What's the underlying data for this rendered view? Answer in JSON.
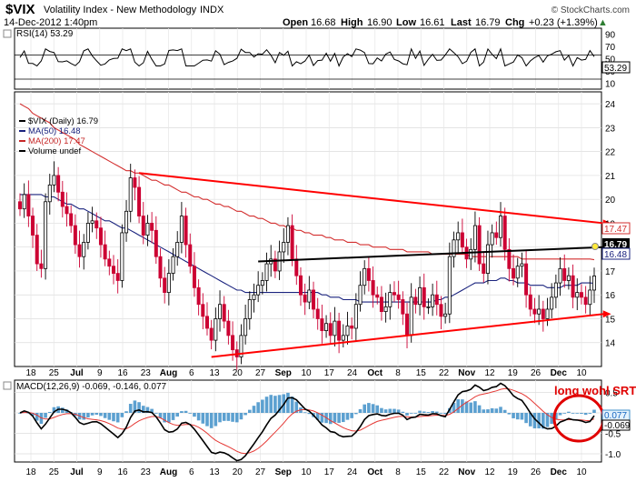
{
  "header": {
    "symbol": "$VIX",
    "name": "Volatility Index - New Methodology",
    "exchange": "INDX",
    "date": "14-Dec-2012 1:40pm",
    "open_label": "Open",
    "open": "16.68",
    "high_label": "High",
    "high": "16.90",
    "low_label": "Low",
    "low": "16.61",
    "last_label": "Last",
    "last": "16.79",
    "chg_label": "Chg",
    "chg": "+0.23 (+1.39%)",
    "up_glyph": "▲",
    "copyright": "© StockCharts.com"
  },
  "rsi_panel": {
    "label": "RSI(14) 53.29",
    "last_label": "53.29",
    "y_ticks": [
      "90",
      "70",
      "50",
      "30",
      "10"
    ]
  },
  "price_panel": {
    "legend": [
      {
        "text": "$VIX (Daily) 16.79",
        "color": "#000000"
      },
      {
        "text": "MA(50) 16.48",
        "color": "#1a237e"
      },
      {
        "text": "MA(200) 17.47",
        "color": "#c62828"
      },
      {
        "text": "Volume undef",
        "color": "#000000"
      }
    ],
    "y_ticks": [
      "24",
      "23",
      "22",
      "21",
      "20",
      "19",
      "18",
      "17",
      "16",
      "15",
      "14"
    ],
    "price_tag": "16.79",
    "ma200_tag": "17.47",
    "ma50_tag": "16.48"
  },
  "macd_panel": {
    "label": "MACD(12,26,9) -0.069, -0.146, 0.077",
    "y_ticks": [
      "0.5",
      "0.0",
      "-0.5",
      "-1.0"
    ],
    "hist_tag": "0.077",
    "macd_tag": "-0.069",
    "annotation": "long wohl SRT"
  },
  "x_axis": {
    "labels": [
      "18",
      "25",
      "Jul",
      "9",
      "16",
      "23",
      "Aug",
      "6",
      "13",
      "20",
      "27",
      "Sep",
      "10",
      "17",
      "24",
      "Oct",
      "8",
      "15",
      "22",
      "Nov",
      "12",
      "19",
      "26",
      "Dec",
      "10"
    ]
  },
  "colors": {
    "up": "#000000",
    "down": "#cc0033",
    "ma50": "#1a237e",
    "ma200": "#d32f2f",
    "trend_red": "#ff0000",
    "trend_black": "#000000",
    "histogram": "#3f8fc8",
    "signal": "#e53935"
  },
  "chart_data": {
    "type": "candlestick",
    "title": "$VIX Volatility Index - New Methodology INDX (Daily)",
    "ylim": [
      13,
      24.5
    ],
    "x_labels": [
      "18",
      "25",
      "Jul",
      "9",
      "16",
      "23",
      "Aug",
      "6",
      "13",
      "20",
      "27",
      "Sep",
      "10",
      "17",
      "24",
      "Oct",
      "8",
      "15",
      "22",
      "Nov",
      "12",
      "19",
      "26",
      "Dec",
      "10"
    ],
    "close": [
      19.6,
      20.2,
      19.3,
      18.5,
      17.3,
      17.1,
      19.9,
      20.6,
      21.0,
      20.3,
      19.7,
      19.4,
      18.9,
      18.1,
      17.6,
      18.2,
      19.0,
      19.1,
      18.8,
      18.1,
      17.5,
      17.2,
      16.9,
      16.6,
      18.6,
      19.5,
      20.9,
      20.5,
      19.3,
      18.5,
      19.0,
      18.7,
      17.6,
      16.7,
      16.1,
      16.9,
      17.6,
      18.2,
      19.3,
      18.1,
      17.2,
      16.3,
      15.6,
      15.1,
      14.6,
      14.1,
      15.0,
      15.6,
      14.9,
      14.3,
      13.7,
      13.4,
      14.3,
      15.0,
      15.8,
      16.0,
      16.4,
      16.6,
      17.3,
      17.5,
      17.0,
      17.8,
      18.2,
      18.9,
      17.5,
      16.8,
      16.0,
      15.7,
      16.2,
      15.4,
      15.0,
      14.5,
      14.8,
      14.3,
      14.9,
      14.1,
      14.3,
      14.7,
      14.6,
      15.6,
      16.4,
      17.1,
      16.6,
      16.0,
      15.9,
      15.3,
      15.5,
      16.1,
      16.0,
      15.8,
      15.2,
      14.3,
      15.9,
      15.6,
      16.3,
      15.5,
      15.5,
      16.0,
      15.6,
      15.1,
      15.2,
      17.6,
      18.3,
      18.6,
      18.0,
      17.5,
      17.9,
      18.9,
      17.3,
      16.9,
      18.1,
      18.6,
      18.4,
      19.3,
      17.9,
      17.1,
      16.7,
      17.2,
      17.3,
      16.0,
      15.4,
      15.2,
      15.4,
      15.0,
      15.4,
      15.9,
      16.5,
      17.1,
      16.6,
      16.8,
      15.9,
      16.1,
      15.9,
      15.6,
      16.2,
      16.79
    ],
    "ma50": [
      20.2,
      20.2,
      20.2,
      20.2,
      20.2,
      20.2,
      20.1,
      20.1,
      20.1,
      20.0,
      19.9,
      19.8,
      19.8,
      19.7,
      19.6,
      19.6,
      19.5,
      19.4,
      19.3,
      19.2,
      19.1,
      19.1,
      19.0,
      18.9,
      18.8,
      18.8,
      18.7,
      18.6,
      18.5,
      18.4,
      18.3,
      18.2,
      18.1,
      18.0,
      17.9,
      17.8,
      17.7,
      17.6,
      17.5,
      17.4,
      17.3,
      17.2,
      17.1,
      17.0,
      16.9,
      16.8,
      16.7,
      16.6,
      16.5,
      16.4,
      16.3,
      16.2,
      16.2,
      16.1,
      16.1,
      16.1,
      16.1,
      16.1,
      16.1,
      16.1,
      16.1,
      16.1,
      16.1,
      16.1,
      16.1,
      16.1,
      16.1,
      16.1,
      16.1,
      16.1,
      16.1,
      16.0,
      16.0,
      15.9,
      15.9,
      15.9,
      15.8,
      15.8,
      15.8,
      15.8,
      15.7,
      15.7,
      15.7,
      15.7,
      15.7,
      15.7,
      15.7,
      15.7,
      15.7,
      15.7,
      15.7,
      15.7,
      15.7,
      15.7,
      15.7,
      15.7,
      15.7,
      15.7,
      15.8,
      15.8,
      15.9,
      15.9,
      16.0,
      16.1,
      16.2,
      16.3,
      16.4,
      16.5,
      16.5,
      16.5,
      16.6,
      16.6,
      16.6,
      16.7,
      16.7,
      16.6,
      16.6,
      16.5,
      16.5,
      16.5,
      16.4,
      16.4,
      16.4,
      16.4,
      16.3,
      16.3,
      16.3,
      16.3,
      16.4,
      16.4,
      16.4,
      16.4,
      16.5,
      16.5,
      16.5,
      16.48
    ],
    "ma200": [
      24.0,
      23.9,
      23.8,
      23.6,
      23.5,
      23.4,
      23.3,
      23.2,
      23.0,
      22.9,
      22.8,
      22.7,
      22.6,
      22.5,
      22.3,
      22.2,
      22.1,
      22.0,
      21.9,
      21.8,
      21.7,
      21.6,
      21.5,
      21.4,
      21.3,
      21.2,
      21.2,
      21.1,
      21.1,
      21.0,
      20.9,
      20.8,
      20.8,
      20.7,
      20.6,
      20.6,
      20.5,
      20.4,
      20.3,
      20.3,
      20.2,
      20.1,
      20.1,
      20.0,
      20.0,
      19.9,
      19.8,
      19.8,
      19.7,
      19.7,
      19.6,
      19.5,
      19.5,
      19.4,
      19.3,
      19.3,
      19.2,
      19.2,
      19.1,
      19.0,
      19.0,
      18.9,
      18.9,
      18.8,
      18.8,
      18.7,
      18.7,
      18.6,
      18.6,
      18.5,
      18.5,
      18.5,
      18.4,
      18.4,
      18.3,
      18.3,
      18.3,
      18.2,
      18.2,
      18.2,
      18.1,
      18.1,
      18.1,
      18.0,
      18.0,
      18.0,
      18.0,
      17.9,
      17.9,
      17.9,
      17.9,
      17.8,
      17.8,
      17.8,
      17.8,
      17.8,
      17.8,
      17.7,
      17.7,
      17.7,
      17.7,
      17.7,
      17.7,
      17.7,
      17.7,
      17.7,
      17.6,
      17.6,
      17.6,
      17.6,
      17.6,
      17.6,
      17.6,
      17.6,
      17.6,
      17.6,
      17.6,
      17.6,
      17.5,
      17.5,
      17.5,
      17.5,
      17.5,
      17.5,
      17.5,
      17.5,
      17.5,
      17.5,
      17.5,
      17.5,
      17.5,
      17.5,
      17.5,
      17.5,
      17.5,
      17.47
    ],
    "trendlines": [
      {
        "name": "upper-red",
        "color": "red",
        "from": {
          "bar": 28,
          "value": 21.1
        },
        "to": {
          "bar": 136,
          "value": 19.0
        }
      },
      {
        "name": "lower-red",
        "color": "red",
        "from": {
          "bar": 45,
          "value": 13.4
        },
        "to": {
          "bar": 136,
          "value": 15.2
        }
      },
      {
        "name": "black-resistance",
        "color": "black",
        "from": {
          "bar": 56,
          "value": 17.4
        },
        "to": {
          "bar": 136,
          "value": 18.0
        }
      }
    ],
    "rsi": {
      "ylim": [
        0,
        100
      ],
      "last": 53.29
    },
    "macd": {
      "macd": -0.069,
      "signal": -0.146,
      "histogram": 0.077,
      "ylim": [
        -1.2,
        0.8
      ]
    }
  }
}
